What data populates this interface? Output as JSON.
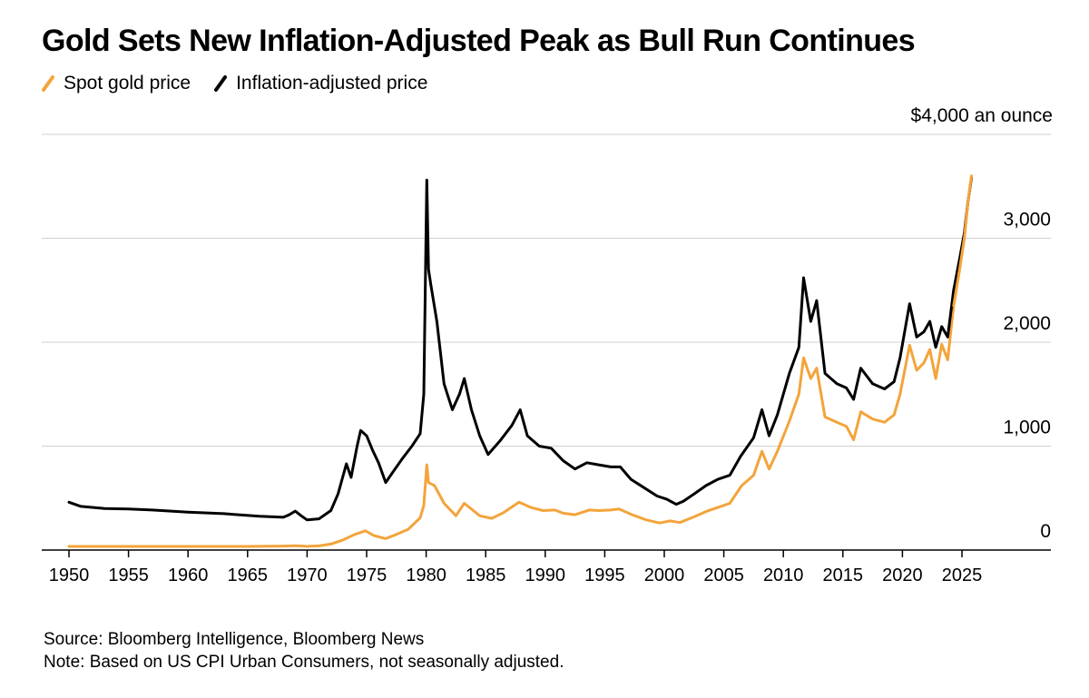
{
  "chart_data": {
    "type": "line",
    "title": "Gold Sets New Inflation-Adjusted Peak as Bull Run Continues",
    "unit_label": "$4,000 an ounce",
    "xlabel": "",
    "ylabel": "",
    "xlim": [
      1950,
      2029
    ],
    "ylim": [
      0,
      4000
    ],
    "x_ticks": [
      "1950",
      "1955",
      "1960",
      "1965",
      "1970",
      "1975",
      "1980",
      "1985",
      "1990",
      "1995",
      "2000",
      "2005",
      "2010",
      "2015",
      "2020",
      "2025"
    ],
    "y_ticks": [
      {
        "value": 0,
        "label": "0"
      },
      {
        "value": 1000,
        "label": "1,000"
      },
      {
        "value": 2000,
        "label": "2,000"
      },
      {
        "value": 3000,
        "label": "3,000"
      }
    ],
    "grid": true,
    "legend_position": "top-left",
    "series": [
      {
        "name": "Spot gold price",
        "color": "#f3a43b",
        "points": [
          [
            1950,
            35
          ],
          [
            1955,
            35
          ],
          [
            1960,
            35
          ],
          [
            1965,
            35
          ],
          [
            1968,
            38
          ],
          [
            1969,
            41
          ],
          [
            1970,
            36
          ],
          [
            1971,
            40
          ],
          [
            1972,
            58
          ],
          [
            1973,
            97
          ],
          [
            1974,
            150
          ],
          [
            1974.9,
            185
          ],
          [
            1975.6,
            140
          ],
          [
            1976.6,
            110
          ],
          [
            1977.5,
            150
          ],
          [
            1978.5,
            200
          ],
          [
            1979.5,
            310
          ],
          [
            1979.8,
            430
          ],
          [
            1980.05,
            820
          ],
          [
            1980.2,
            650
          ],
          [
            1980.7,
            620
          ],
          [
            1981.5,
            450
          ],
          [
            1982.5,
            330
          ],
          [
            1983.2,
            450
          ],
          [
            1984.5,
            330
          ],
          [
            1985.5,
            305
          ],
          [
            1986.5,
            360
          ],
          [
            1987.8,
            460
          ],
          [
            1988.8,
            410
          ],
          [
            1989.8,
            380
          ],
          [
            1990.8,
            385
          ],
          [
            1991.5,
            355
          ],
          [
            1992.5,
            340
          ],
          [
            1993.7,
            385
          ],
          [
            1994.5,
            380
          ],
          [
            1995.5,
            385
          ],
          [
            1996.2,
            395
          ],
          [
            1997.3,
            340
          ],
          [
            1998.5,
            290
          ],
          [
            1999.6,
            260
          ],
          [
            2000.5,
            280
          ],
          [
            2001.3,
            265
          ],
          [
            2002.5,
            320
          ],
          [
            2003.5,
            370
          ],
          [
            2004.5,
            410
          ],
          [
            2005.5,
            450
          ],
          [
            2006.5,
            620
          ],
          [
            2007.5,
            720
          ],
          [
            2008.2,
            950
          ],
          [
            2008.8,
            780
          ],
          [
            2009.5,
            950
          ],
          [
            2010.5,
            1240
          ],
          [
            2011.3,
            1500
          ],
          [
            2011.7,
            1850
          ],
          [
            2012.3,
            1650
          ],
          [
            2012.8,
            1750
          ],
          [
            2013.5,
            1280
          ],
          [
            2014.5,
            1230
          ],
          [
            2015.3,
            1190
          ],
          [
            2015.9,
            1060
          ],
          [
            2016.5,
            1330
          ],
          [
            2017.5,
            1260
          ],
          [
            2018.5,
            1230
          ],
          [
            2019.3,
            1300
          ],
          [
            2019.8,
            1500
          ],
          [
            2020.6,
            1970
          ],
          [
            2021.2,
            1730
          ],
          [
            2021.8,
            1800
          ],
          [
            2022.3,
            1930
          ],
          [
            2022.8,
            1650
          ],
          [
            2023.3,
            1980
          ],
          [
            2023.8,
            1830
          ],
          [
            2024.3,
            2350
          ],
          [
            2024.8,
            2700
          ],
          [
            2025.2,
            3000
          ],
          [
            2025.5,
            3350
          ],
          [
            2025.8,
            3600
          ]
        ]
      },
      {
        "name": "Inflation-adjusted price",
        "color": "#000000",
        "points": [
          [
            1950,
            460
          ],
          [
            1951,
            420
          ],
          [
            1953,
            400
          ],
          [
            1955,
            395
          ],
          [
            1957,
            385
          ],
          [
            1960,
            365
          ],
          [
            1963,
            350
          ],
          [
            1966,
            325
          ],
          [
            1968,
            315
          ],
          [
            1968.5,
            340
          ],
          [
            1969,
            375
          ],
          [
            1969.5,
            330
          ],
          [
            1970,
            290
          ],
          [
            1971,
            300
          ],
          [
            1972,
            380
          ],
          [
            1972.6,
            540
          ],
          [
            1973.3,
            830
          ],
          [
            1973.7,
            700
          ],
          [
            1974.2,
            1000
          ],
          [
            1974.5,
            1150
          ],
          [
            1975,
            1100
          ],
          [
            1975.5,
            960
          ],
          [
            1976,
            840
          ],
          [
            1976.6,
            650
          ],
          [
            1977.2,
            750
          ],
          [
            1978,
            880
          ],
          [
            1978.8,
            1000
          ],
          [
            1979.5,
            1120
          ],
          [
            1979.8,
            1500
          ],
          [
            1980.05,
            3560
          ],
          [
            1980.2,
            2700
          ],
          [
            1980.4,
            2550
          ],
          [
            1980.9,
            2200
          ],
          [
            1981.5,
            1600
          ],
          [
            1982.2,
            1350
          ],
          [
            1982.8,
            1500
          ],
          [
            1983.2,
            1650
          ],
          [
            1983.8,
            1350
          ],
          [
            1984.5,
            1100
          ],
          [
            1985.2,
            920
          ],
          [
            1986.2,
            1050
          ],
          [
            1987.2,
            1200
          ],
          [
            1987.9,
            1350
          ],
          [
            1988.5,
            1100
          ],
          [
            1989.5,
            1000
          ],
          [
            1990.5,
            980
          ],
          [
            1991.5,
            860
          ],
          [
            1992.5,
            780
          ],
          [
            1993.5,
            840
          ],
          [
            1994.5,
            820
          ],
          [
            1995.5,
            800
          ],
          [
            1996.3,
            800
          ],
          [
            1997.2,
            680
          ],
          [
            1998.3,
            600
          ],
          [
            1999.4,
            520
          ],
          [
            2000.2,
            490
          ],
          [
            2001,
            440
          ],
          [
            2001.6,
            470
          ],
          [
            2002.5,
            540
          ],
          [
            2003.5,
            620
          ],
          [
            2004.5,
            680
          ],
          [
            2005.5,
            720
          ],
          [
            2006.4,
            900
          ],
          [
            2007.5,
            1080
          ],
          [
            2008.2,
            1350
          ],
          [
            2008.8,
            1100
          ],
          [
            2009.5,
            1300
          ],
          [
            2010.5,
            1700
          ],
          [
            2011.3,
            1950
          ],
          [
            2011.7,
            2620
          ],
          [
            2012.3,
            2200
          ],
          [
            2012.8,
            2400
          ],
          [
            2013.5,
            1700
          ],
          [
            2014.5,
            1600
          ],
          [
            2015.3,
            1560
          ],
          [
            2015.9,
            1450
          ],
          [
            2016.5,
            1750
          ],
          [
            2017.5,
            1600
          ],
          [
            2018.5,
            1550
          ],
          [
            2019.3,
            1620
          ],
          [
            2019.8,
            1850
          ],
          [
            2020.6,
            2370
          ],
          [
            2021.2,
            2050
          ],
          [
            2021.8,
            2100
          ],
          [
            2022.3,
            2200
          ],
          [
            2022.8,
            1950
          ],
          [
            2023.3,
            2150
          ],
          [
            2023.8,
            2050
          ],
          [
            2024.3,
            2500
          ],
          [
            2024.8,
            2800
          ],
          [
            2025.2,
            3050
          ],
          [
            2025.5,
            3350
          ],
          [
            2025.8,
            3580
          ]
        ]
      }
    ],
    "sources": [
      "Source: Bloomberg Intelligence, Bloomberg News",
      "Note: Based on US CPI Urban Consumers, not seasonally adjusted."
    ]
  }
}
